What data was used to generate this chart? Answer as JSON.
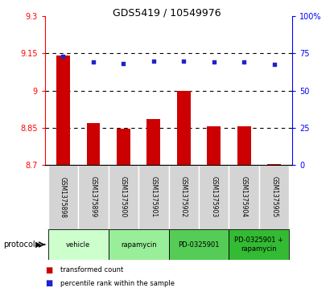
{
  "title": "GDS5419 / 10549976",
  "samples": [
    "GSM1375898",
    "GSM1375899",
    "GSM1375900",
    "GSM1375901",
    "GSM1375902",
    "GSM1375903",
    "GSM1375904",
    "GSM1375905"
  ],
  "bar_values": [
    9.14,
    8.87,
    8.845,
    8.885,
    9.0,
    8.855,
    8.856,
    8.703
  ],
  "scatter_values": [
    73.0,
    69.0,
    68.0,
    69.5,
    70.0,
    69.0,
    69.0,
    67.5
  ],
  "ylim_left": [
    8.7,
    9.3
  ],
  "ylim_right": [
    0,
    100
  ],
  "yticks_left": [
    8.7,
    8.85,
    9.0,
    9.15,
    9.3
  ],
  "yticks_right": [
    0,
    25,
    50,
    75,
    100
  ],
  "ytick_labels_left": [
    "8.7",
    "8.85",
    "9",
    "9.15",
    "9.3"
  ],
  "ytick_labels_right": [
    "0",
    "25",
    "50",
    "75",
    "100%"
  ],
  "grid_lines": [
    8.85,
    9.0,
    9.15
  ],
  "bar_color": "#cc0000",
  "scatter_color": "#2222cc",
  "protocol_groups": [
    {
      "label": "vehicle",
      "start": 0,
      "end": 1,
      "color": "#ccffcc"
    },
    {
      "label": "rapamycin",
      "start": 2,
      "end": 3,
      "color": "#99ee99"
    },
    {
      "label": "PD-0325901",
      "start": 4,
      "end": 5,
      "color": "#55cc55"
    },
    {
      "label": "PD-0325901 +\nrapamycin",
      "start": 6,
      "end": 7,
      "color": "#33bb33"
    }
  ],
  "legend_labels": [
    "transformed count",
    "percentile rank within the sample"
  ],
  "legend_colors": [
    "#cc0000",
    "#2222cc"
  ],
  "bar_bottom": 8.7,
  "bar_width": 0.45
}
